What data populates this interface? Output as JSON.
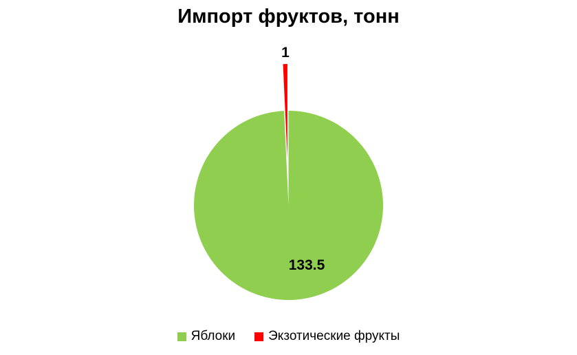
{
  "chart_data": {
    "type": "pie",
    "title": "Импорт фруктов, тонн",
    "slices": [
      {
        "label": "Яблоки",
        "value": 133.5,
        "value_label": "133.5",
        "color": "#8FCE4F",
        "exploded": false
      },
      {
        "label": "Экзотические фрукты",
        "value": 1,
        "value_label": "1",
        "color": "#FF0000",
        "exploded": true
      }
    ],
    "start_angle_deg": 0,
    "direction": "clockwise",
    "data_labels": "values",
    "legend_position": "bottom",
    "background_color": "#FFFFFF",
    "text_color": "#000000"
  }
}
